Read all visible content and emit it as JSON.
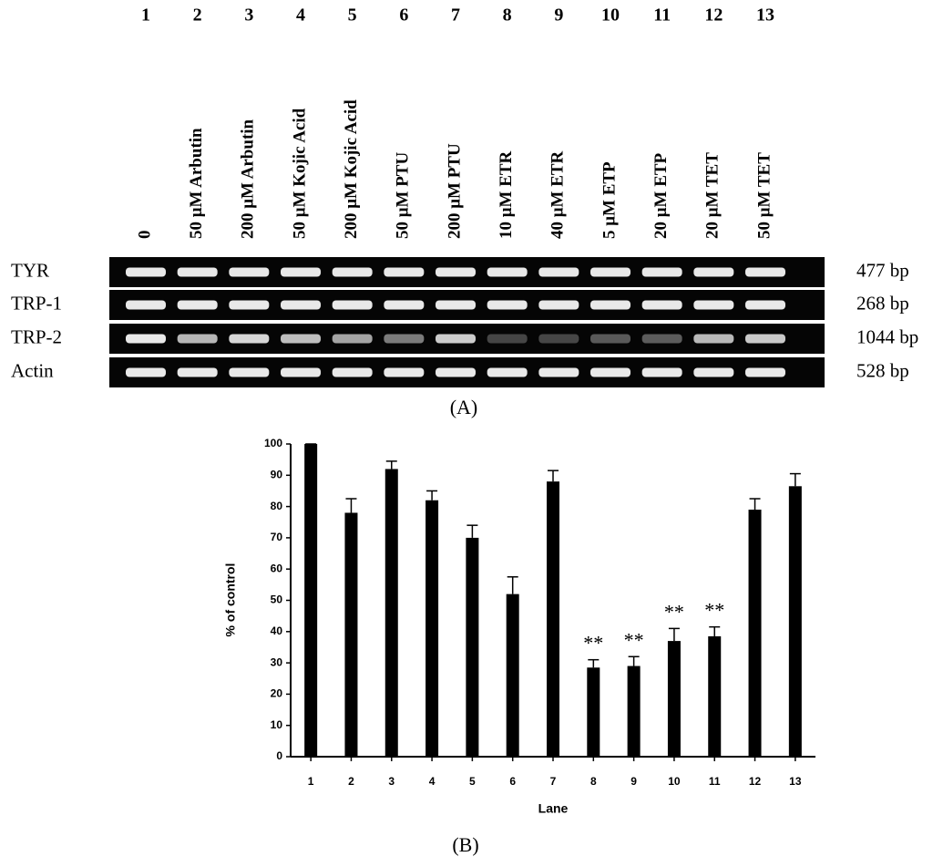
{
  "panel_a": {
    "lanes": [
      "1",
      "2",
      "3",
      "4",
      "5",
      "6",
      "7",
      "8",
      "9",
      "10",
      "11",
      "12",
      "13"
    ],
    "treatments": [
      "0",
      "50 μM Arbutin",
      "200 μM Arbutin",
      "50 μM Kojic Acid",
      "200 μM Kojic Acid",
      "50 μM PTU",
      "200 μM PTU",
      "10 μM ETR",
      "40 μM ETR",
      "5 μM ETP",
      "20 μM ETP",
      "20 μM TET",
      "50 μM TET"
    ],
    "genes": [
      {
        "name": "TYR",
        "size": "477 bp"
      },
      {
        "name": "TRP-1",
        "size": "268 bp"
      },
      {
        "name": "TRP-2",
        "size": "1044 bp"
      },
      {
        "name": "Actin",
        "size": "528 bp"
      }
    ],
    "label": "(A)"
  },
  "chart_data": {
    "type": "bar",
    "label": "(B)",
    "x_label": "Lane",
    "y_label": "% of control",
    "categories": [
      "1",
      "2",
      "3",
      "4",
      "5",
      "6",
      "7",
      "8",
      "9",
      "10",
      "11",
      "12",
      "13"
    ],
    "values": [
      100,
      78,
      92,
      82,
      70,
      52,
      88,
      28.5,
      29,
      37,
      38.5,
      79,
      86.5
    ],
    "errors": [
      0,
      4.5,
      2.5,
      3,
      4,
      5.5,
      3.5,
      2.5,
      3,
      4,
      3,
      3.5,
      4
    ],
    "significance": [
      null,
      null,
      null,
      null,
      null,
      null,
      null,
      "**",
      "**",
      "**",
      "**",
      null,
      null
    ],
    "color": "#000000",
    "ylim": [
      0,
      100
    ],
    "yticks": [
      0,
      10,
      20,
      30,
      40,
      50,
      60,
      70,
      80,
      90,
      100
    ]
  }
}
